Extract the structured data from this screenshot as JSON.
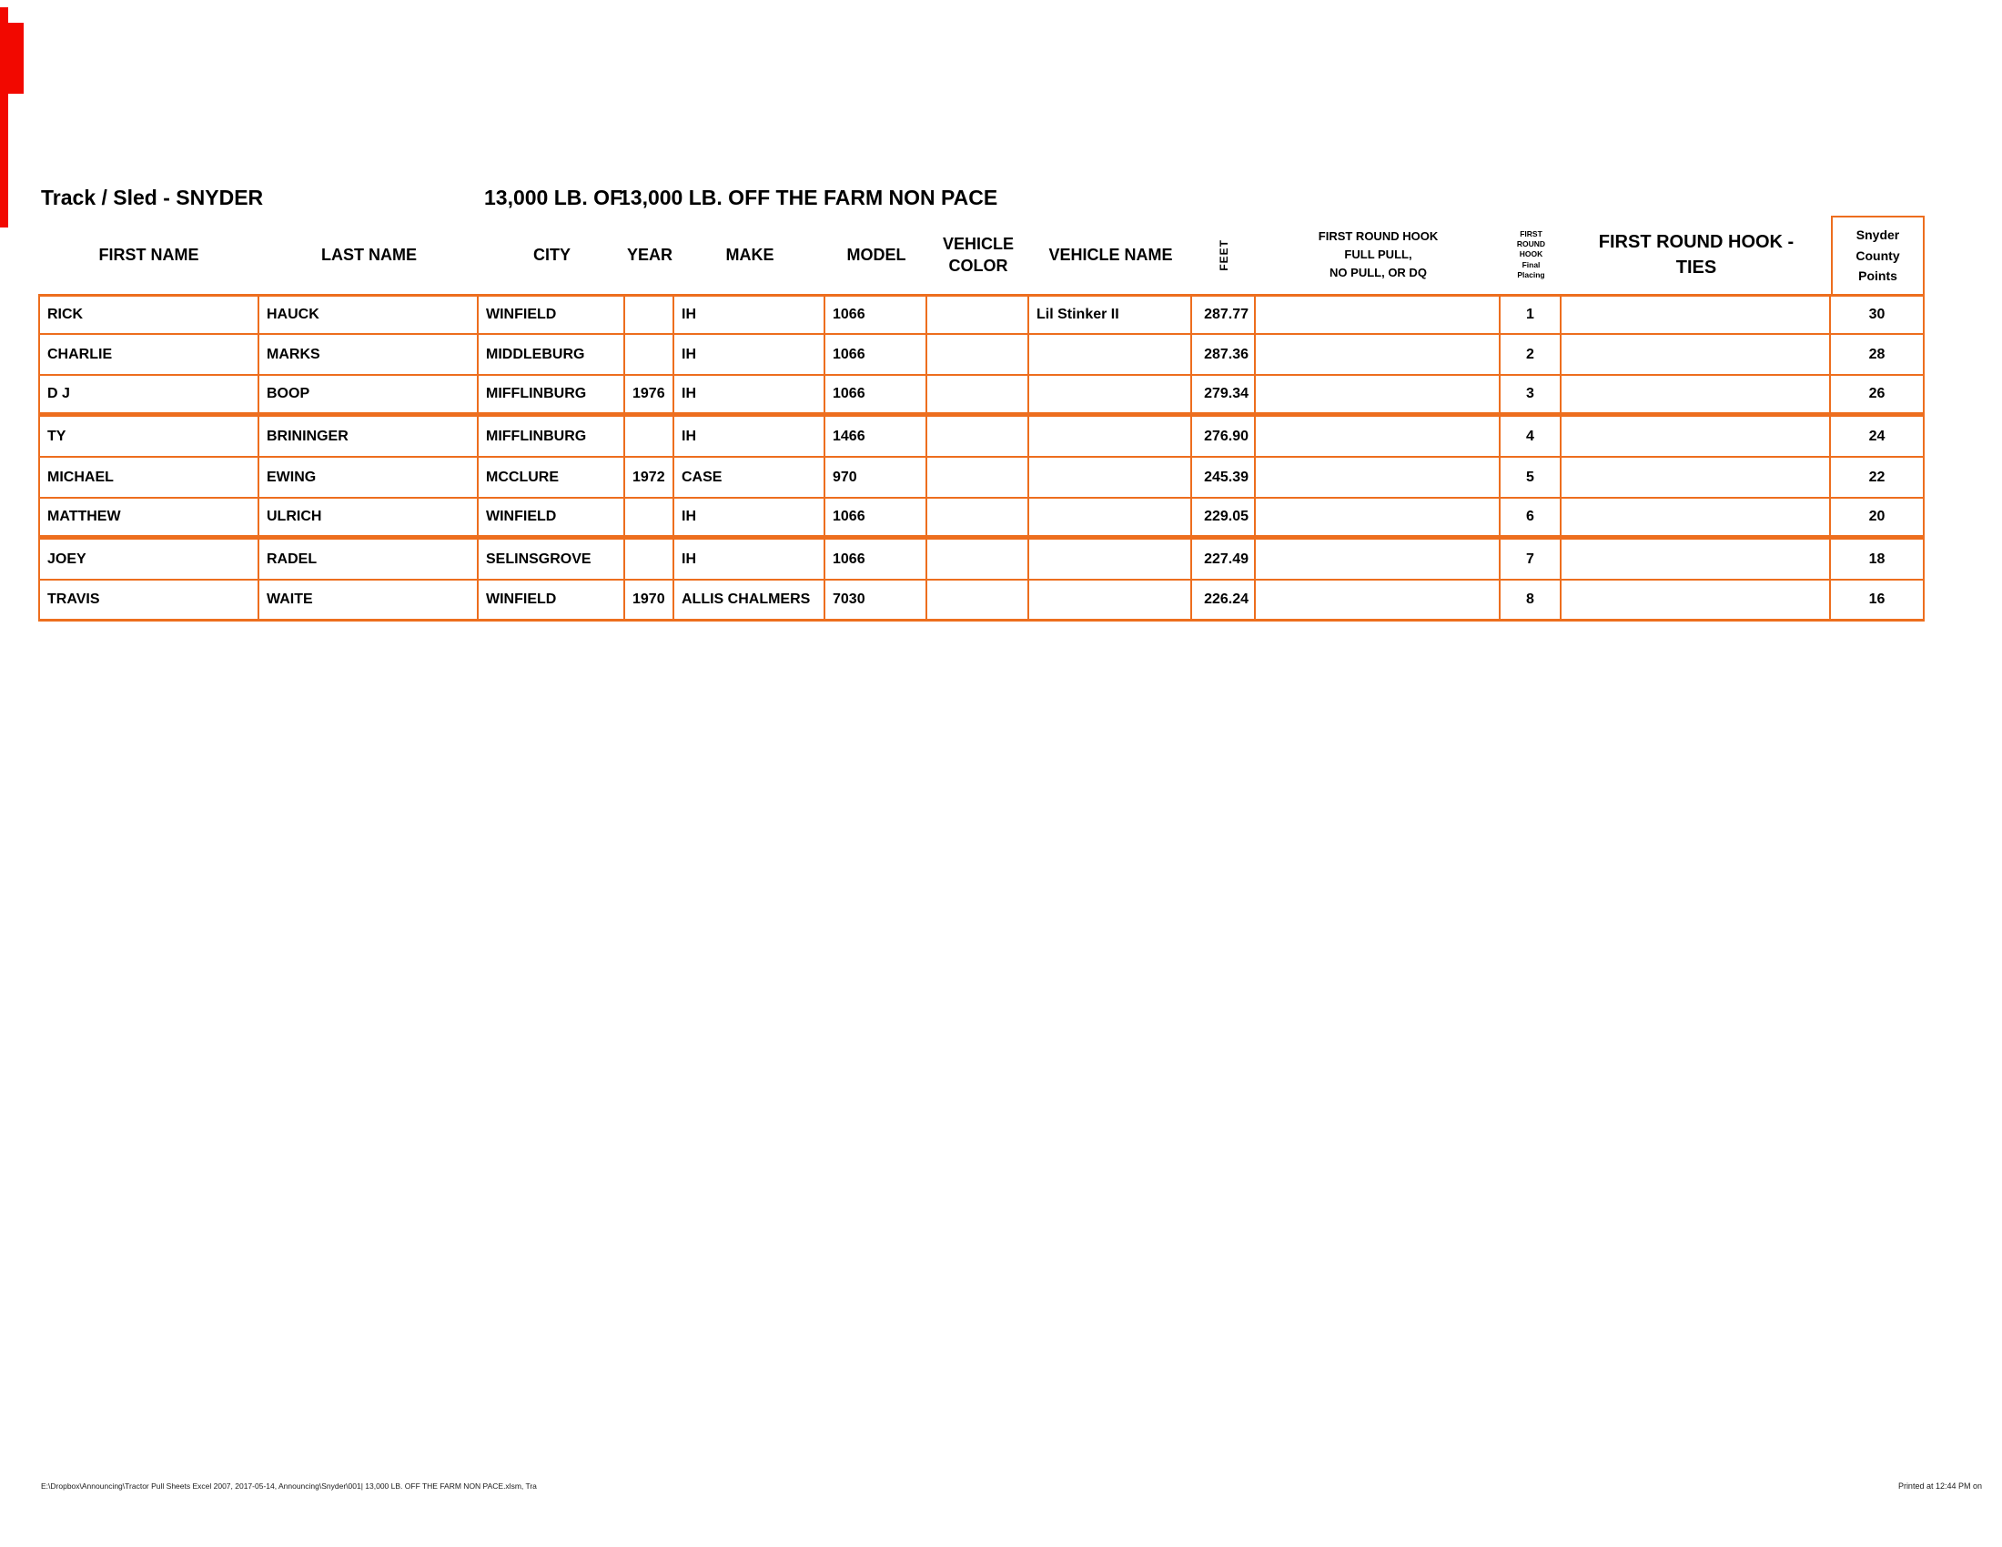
{
  "page": {
    "accent_color": "#ED6E1E",
    "mark_color": "#F20800",
    "title_left": "Track / Sled - SNYDER",
    "title_weight_prefix": "13,000 LB. OF",
    "title_class": "13,000 LB. OFF THE FARM NON PACE",
    "footer_left": "E:\\Dropbox\\Announcing\\Tractor Pull Sheets Excel 2007, 2017-05-14, Announcing\\Snyder\\001| 13,000 LB. OFF THE FARM NON PACE.xlsm, Tra",
    "footer_right": "Printed at 12:44 PM on"
  },
  "table": {
    "headers": {
      "first_name": "FIRST NAME",
      "last_name": "LAST NAME",
      "city": "CITY",
      "year": "YEAR",
      "make": "MAKE",
      "model": "MODEL",
      "vehicle_color_lines": [
        "VEHICLE",
        "COLOR"
      ],
      "vehicle_name": "VEHICLE NAME",
      "feet": "FEET",
      "full_pull_lines": [
        "FIRST ROUND HOOK",
        "FULL PULL,",
        "NO PULL, OR DQ"
      ],
      "placing_lines": [
        "FIRST",
        "ROUND",
        "HOOK",
        "Final",
        "Placing"
      ],
      "ties_lines": [
        "FIRST ROUND HOOK -",
        "TIES"
      ],
      "points_lines": [
        "Snyder",
        "County",
        "Points"
      ]
    },
    "rows": [
      [
        "RICK",
        "HAUCK",
        "WINFIELD",
        "",
        "IH",
        "1066",
        "",
        "Lil Stinker II",
        "287.77",
        "",
        "1",
        "",
        "30"
      ],
      [
        "CHARLIE",
        "MARKS",
        "MIDDLEBURG",
        "",
        "IH",
        "1066",
        "",
        "",
        "287.36",
        "",
        "2",
        "",
        "28"
      ],
      [
        "D J",
        "BOOP",
        "MIFFLINBURG",
        "1976",
        "IH",
        "1066",
        "",
        "",
        "279.34",
        "",
        "3",
        "",
        "26"
      ],
      [
        "TY",
        "BRININGER",
        "MIFFLINBURG",
        "",
        "IH",
        "1466",
        "",
        "",
        "276.90",
        "",
        "4",
        "",
        "24"
      ],
      [
        "MICHAEL",
        "EWING",
        "MCCLURE",
        "1972",
        "CASE",
        "970",
        "",
        "",
        "245.39",
        "",
        "5",
        "",
        "22"
      ],
      [
        "MATTHEW",
        "ULRICH",
        "WINFIELD",
        "",
        "IH",
        "1066",
        "",
        "",
        "229.05",
        "",
        "6",
        "",
        "20"
      ],
      [
        "JOEY",
        "RADEL",
        "SELINSGROVE",
        "",
        "IH",
        "1066",
        "",
        "",
        "227.49",
        "",
        "7",
        "",
        "18"
      ],
      [
        "TRAVIS",
        "WAITE",
        "WINFIELD",
        "1970",
        "ALLIS CHALMERS",
        "7030",
        "",
        "",
        "226.24",
        "",
        "8",
        "",
        "16"
      ]
    ]
  }
}
